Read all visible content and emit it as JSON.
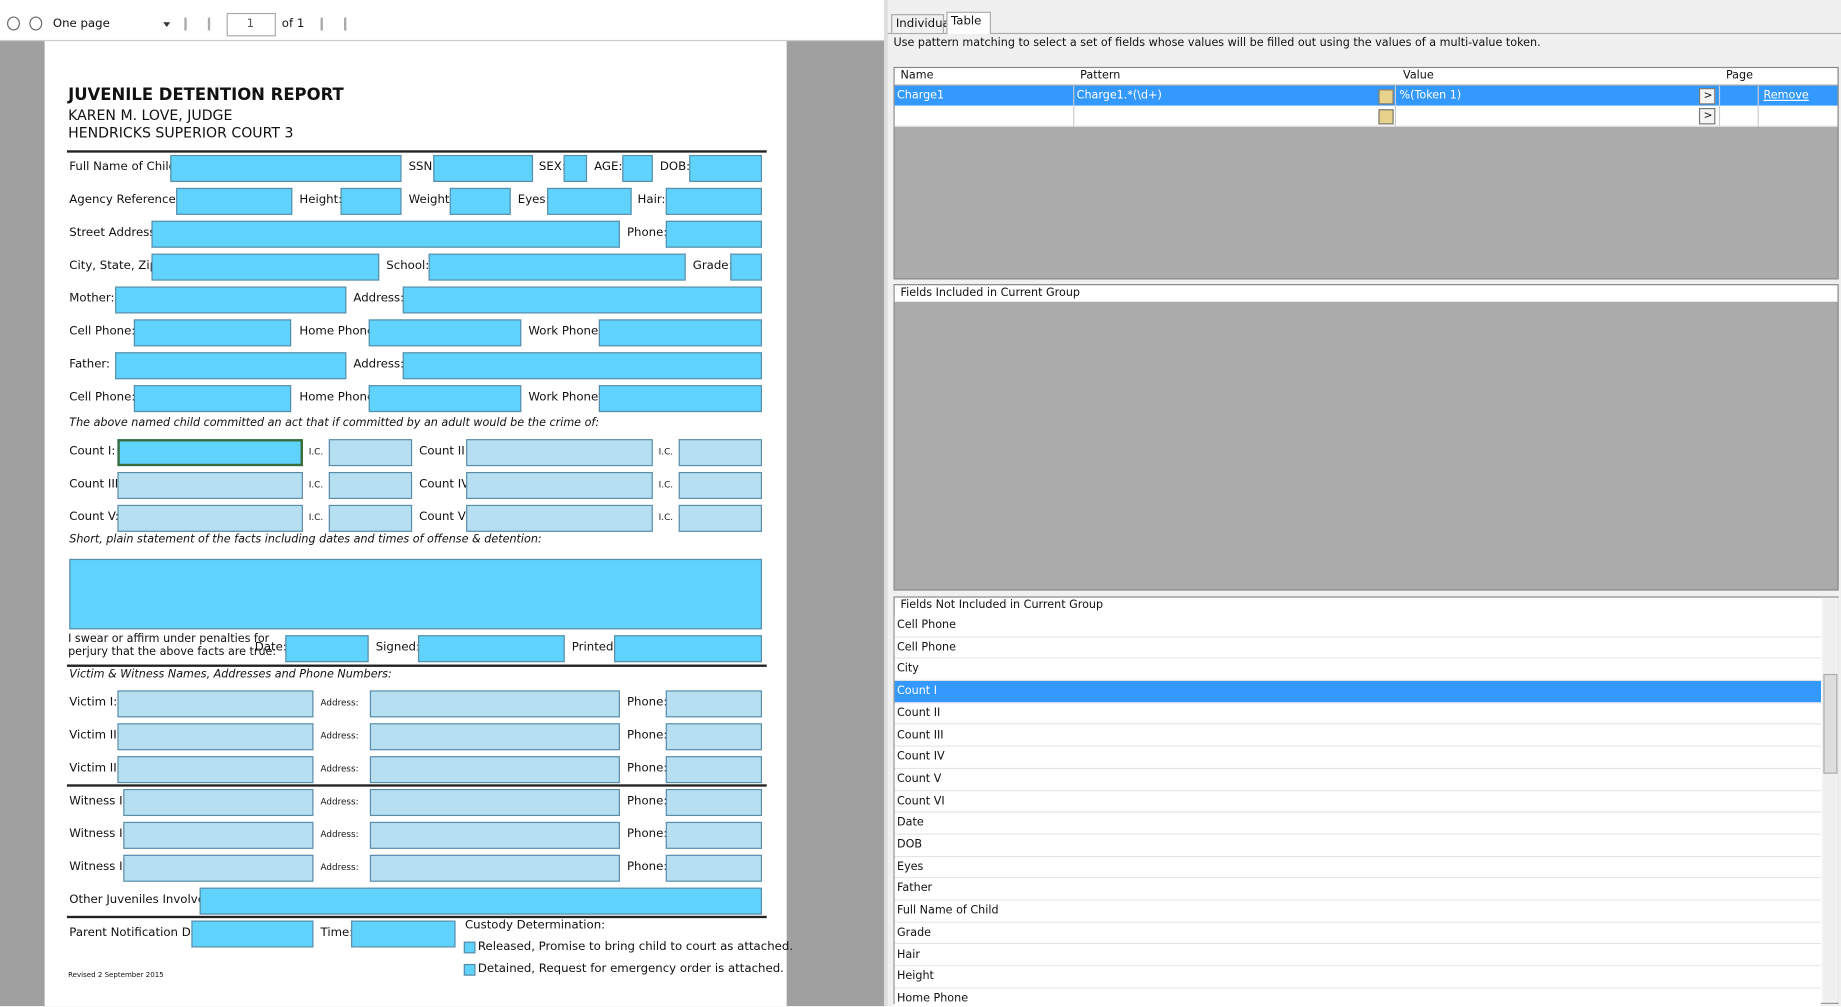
{
  "toolbar": {
    "view_mode": "One page",
    "page_number": "1",
    "page_count_label": "of 1"
  },
  "form": {
    "title": "JUVENILE DETENTION REPORT",
    "judge": "KAREN M. LOVE, JUDGE",
    "court": "HENDRICKS SUPERIOR COURT 3",
    "fields": [
      "Full Name of Child:",
      "SSN:",
      "SEX:",
      "AGE:",
      "DOB:",
      "Agency Reference #:",
      "Height:",
      "Weight:",
      "Eyes:",
      "Hair:",
      "Street Address:",
      "Phone:",
      "City, State, Zip:",
      "School:",
      "Grade:",
      "Mother:",
      "Address:",
      "Cell Phone:",
      "Home Phone:",
      "Work Phone:",
      "Father:",
      "Address:",
      "Cell Phone:",
      "Home Phone:",
      "Work Phone:",
      "Count I:",
      "I.C.",
      "Count II:",
      "I.C.",
      "Count III:",
      "I.C.",
      "Count IV:",
      "I.C.",
      "Count V:",
      "I.C.",
      "Count VI:",
      "I.C.",
      "Date:",
      "Signed:",
      "Printed:",
      "Victim I:",
      "Address:",
      "Phone:",
      "Victim II:",
      "Address:",
      "Phone:",
      "Victim III:",
      "Address:",
      "Phone:",
      "Witness I:",
      "Address:",
      "Phone:",
      "Witness II:",
      "Address:",
      "Phone:",
      "Witness III:",
      "Address:",
      "Phone:",
      "Other Juveniles Involved:",
      "Parent Notification Date:",
      "Time:"
    ],
    "crime_note": "The above named child committed an act that if committed by an adult would be the crime of:",
    "facts_note": "Short, plain statement of the facts including dates and times of offense & detention:",
    "swear_lines": [
      "I swear or affirm under penalties for",
      "perjury that the above facts are true:"
    ],
    "victim_note": "Victim & Witness Names, Addresses and Phone Numbers:",
    "custody_title": "Custody Determination:",
    "custody_options": [
      "Released, Promise to bring child to court as attached.",
      "Detained, Request for emergency order is attached."
    ],
    "revised": "Revised  2 September 2015"
  },
  "panel": {
    "tabs": [
      "Individual",
      "Table"
    ],
    "description": "Use pattern matching to select a set of fields whose values will be filled out using the values of a multi-value token.",
    "columns": [
      "Name",
      "Pattern",
      "Value",
      "Page"
    ],
    "rows": [
      {
        "name": "Charge1",
        "pattern": "Charge1.*(\\d+)",
        "value": "%(Token 1)",
        "action": "Remove"
      }
    ],
    "button_label": ">",
    "included_header": "Fields Included in Current Group",
    "not_included_header": "Fields Not Included in Current Group",
    "not_included": [
      "Cell Phone",
      "Cell Phone",
      "City",
      "Count I",
      "Count II",
      "Count III",
      "Count IV",
      "Count V",
      "Count VI",
      "Date",
      "DOB",
      "Eyes",
      "Father",
      "Full Name of Child",
      "Grade",
      "Hair",
      "Height",
      "Home Phone"
    ],
    "selected_index": 3
  }
}
